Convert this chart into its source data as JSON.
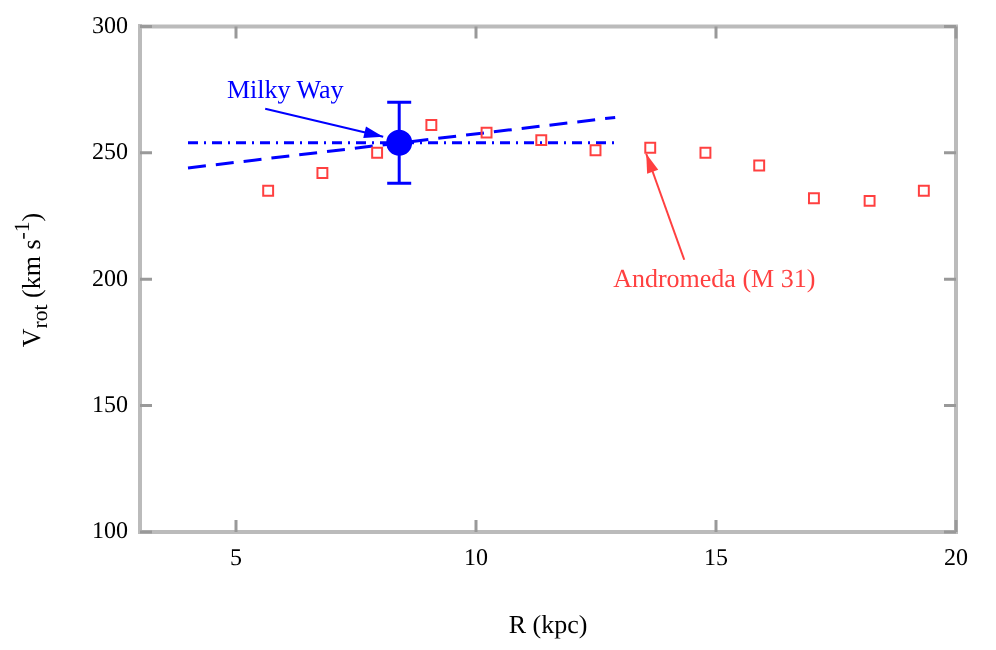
{
  "chart_data": {
    "type": "scatter",
    "xlabel": "R (kpc)",
    "ylabel": "V$_{rot}$ (km s$^{-1}$)",
    "xlim": [
      3,
      20
    ],
    "xticks": [
      5,
      10,
      15,
      20
    ],
    "ylim": [
      100,
      300
    ],
    "yticks": [
      100,
      150,
      200,
      250,
      300
    ],
    "grid": false,
    "legend": false,
    "series": [
      {
        "type": "scatter",
        "marker": "square",
        "color": "#ff4040",
        "x": [
          5.67,
          6.8,
          7.94,
          9.07,
          10.22,
          11.36,
          12.49,
          13.63,
          14.78,
          15.9,
          17.04,
          18.2,
          19.33
        ],
        "values": [
          235,
          242,
          250,
          261,
          258,
          255,
          251,
          252,
          250,
          245,
          232,
          231,
          235
        ]
      },
      {
        "type": "line",
        "line_style": "dashed",
        "marker": "none",
        "color": "#0000ff",
        "x": [
          4,
          12.9
        ],
        "values": [
          244,
          264
        ]
      },
      {
        "type": "line",
        "line_style": "dotted",
        "marker": "none",
        "color": "#0000ff",
        "x": [
          4,
          12.9
        ],
        "values": [
          254,
          254
        ]
      },
      {
        "type": "scatter",
        "marker": "circle",
        "color": "#0000ff",
        "x": [
          8.4
        ],
        "values": [
          254
        ],
        "errors": [
          16
        ]
      }
    ],
    "annotations": [
      {
        "text": "Milky Way",
        "x": 8.4,
        "y": 254
      },
      {
        "text": "Andromeda (M 31)",
        "x": 13.63,
        "y": 252
      }
    ]
  }
}
